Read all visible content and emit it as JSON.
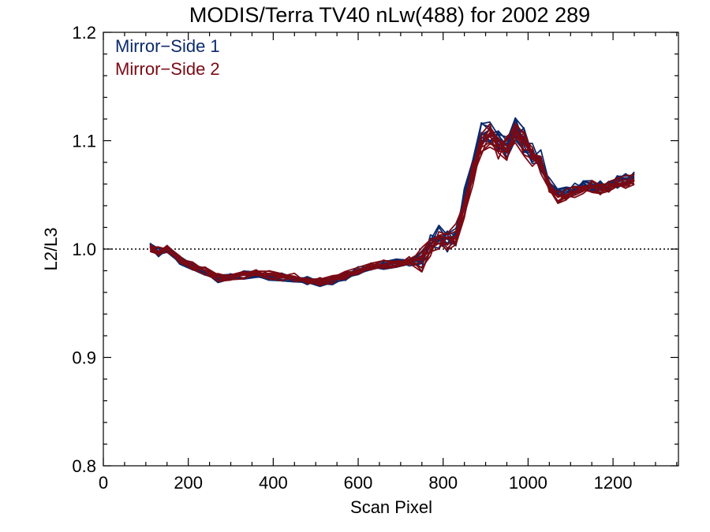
{
  "chart_data": {
    "type": "line",
    "title": "MODIS/Terra TV40 nLw(488) for 2002 289",
    "xlabel": "Scan Pixel",
    "ylabel": "L2/L3",
    "xlim": [
      0,
      1354
    ],
    "ylim": [
      0.8,
      1.2
    ],
    "x_ticks": [
      0,
      200,
      400,
      600,
      800,
      1000,
      1200
    ],
    "x_tick_labels": [
      "0",
      "200",
      "400",
      "600",
      "800",
      "1000",
      "1200"
    ],
    "y_ticks": [
      0.8,
      0.9,
      1.0,
      1.1,
      1.2
    ],
    "y_tick_labels": [
      "0.8",
      "0.9",
      "1.0",
      "1.1",
      "1.2"
    ],
    "reference_line": {
      "y": 1.0,
      "style": "dotted"
    },
    "grid": false,
    "legend_position": "top-left",
    "colors": {
      "mirror_side_1": "#0b2a6b",
      "mirror_side_2": "#7a0a14"
    },
    "series": [
      {
        "name": "Mirror−Side 1",
        "color": "#0b2a6b",
        "x": [
          110,
          130,
          150,
          180,
          210,
          240,
          270,
          300,
          330,
          360,
          390,
          420,
          450,
          480,
          510,
          540,
          570,
          600,
          630,
          660,
          690,
          720,
          750,
          770,
          790,
          810,
          830,
          850,
          870,
          890,
          910,
          930,
          950,
          970,
          990,
          1010,
          1030,
          1050,
          1070,
          1090,
          1110,
          1130,
          1150,
          1170,
          1190,
          1210,
          1230,
          1250
        ],
        "y": [
          1.002,
          0.997,
          1.001,
          0.99,
          0.983,
          0.979,
          0.973,
          0.974,
          0.976,
          0.977,
          0.975,
          0.974,
          0.973,
          0.971,
          0.969,
          0.971,
          0.975,
          0.98,
          0.983,
          0.985,
          0.987,
          0.988,
          0.99,
          1.005,
          1.012,
          1.005,
          1.015,
          1.045,
          1.075,
          1.105,
          1.11,
          1.1,
          1.095,
          1.112,
          1.1,
          1.09,
          1.08,
          1.06,
          1.05,
          1.052,
          1.055,
          1.058,
          1.06,
          1.057,
          1.06,
          1.062,
          1.064,
          1.067
        ]
      },
      {
        "name": "Mirror−Side 2",
        "color": "#7a0a14",
        "x": [
          110,
          130,
          150,
          180,
          210,
          240,
          270,
          300,
          330,
          360,
          390,
          420,
          450,
          480,
          510,
          540,
          570,
          600,
          630,
          660,
          690,
          720,
          750,
          770,
          790,
          810,
          830,
          850,
          870,
          890,
          910,
          930,
          950,
          970,
          990,
          1010,
          1030,
          1050,
          1070,
          1090,
          1110,
          1130,
          1150,
          1170,
          1190,
          1210,
          1230,
          1250
        ],
        "y": [
          1.001,
          0.998,
          1.0,
          0.991,
          0.984,
          0.98,
          0.974,
          0.975,
          0.976,
          0.977,
          0.976,
          0.974,
          0.974,
          0.972,
          0.97,
          0.972,
          0.976,
          0.981,
          0.984,
          0.986,
          0.987,
          0.989,
          0.99,
          1.004,
          1.01,
          1.004,
          1.012,
          1.04,
          1.07,
          1.098,
          1.104,
          1.095,
          1.092,
          1.108,
          1.098,
          1.087,
          1.076,
          1.057,
          1.048,
          1.05,
          1.053,
          1.056,
          1.058,
          1.055,
          1.058,
          1.06,
          1.062,
          1.064
        ]
      }
    ]
  }
}
